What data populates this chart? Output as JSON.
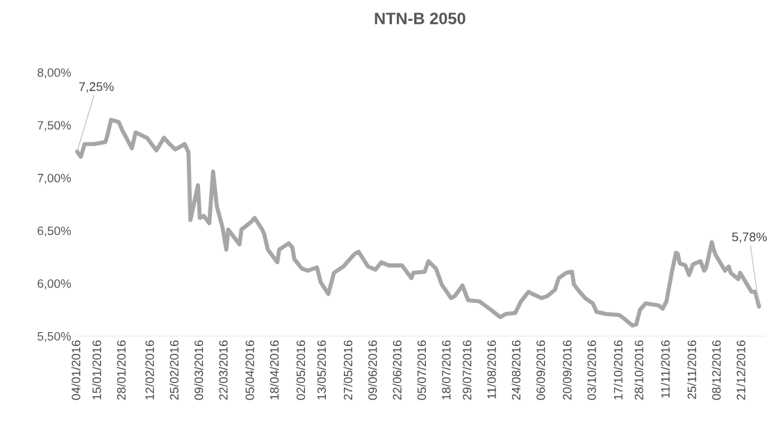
{
  "chart_data": {
    "type": "line",
    "title": "NTN-B 2050",
    "x": [
      "2016-01-04",
      "2016-01-06",
      "2016-01-08",
      "2016-01-13",
      "2016-01-19",
      "2016-01-20",
      "2016-01-22",
      "2016-01-26",
      "2016-01-28",
      "2016-02-02",
      "2016-02-04",
      "2016-02-10",
      "2016-02-15",
      "2016-02-17",
      "2016-02-19",
      "2016-02-22",
      "2016-02-25",
      "2016-03-01",
      "2016-03-03",
      "2016-03-04",
      "2016-03-08",
      "2016-03-09",
      "2016-03-11",
      "2016-03-14",
      "2016-03-16",
      "2016-03-18",
      "2016-03-21",
      "2016-03-23",
      "2016-03-24",
      "2016-03-30",
      "2016-03-31",
      "2016-04-05",
      "2016-04-07",
      "2016-04-11",
      "2016-04-12",
      "2016-04-14",
      "2016-04-19",
      "2016-04-20",
      "2016-04-25",
      "2016-04-27",
      "2016-04-28",
      "2016-05-02",
      "2016-05-05",
      "2016-05-10",
      "2016-05-12",
      "2016-05-16",
      "2016-05-19",
      "2016-05-24",
      "2016-05-30",
      "2016-06-01",
      "2016-06-06",
      "2016-06-10",
      "2016-06-13",
      "2016-06-17",
      "2016-06-24",
      "2016-06-29",
      "2016-06-30",
      "2016-07-06",
      "2016-07-08",
      "2016-07-12",
      "2016-07-15",
      "2016-07-20",
      "2016-07-22",
      "2016-07-26",
      "2016-07-29",
      "2016-08-04",
      "2016-08-10",
      "2016-08-15",
      "2016-08-18",
      "2016-08-23",
      "2016-08-26",
      "2016-08-30",
      "2016-09-01",
      "2016-09-06",
      "2016-09-09",
      "2016-09-13",
      "2016-09-15",
      "2016-09-19",
      "2016-09-22",
      "2016-09-23",
      "2016-09-26",
      "2016-09-29",
      "2016-10-03",
      "2016-10-05",
      "2016-10-10",
      "2016-10-17",
      "2016-10-20",
      "2016-10-24",
      "2016-10-26",
      "2016-10-28",
      "2016-10-31",
      "2016-11-07",
      "2016-11-09",
      "2016-11-11",
      "2016-11-14",
      "2016-11-16",
      "2016-11-17",
      "2016-11-18",
      "2016-11-21",
      "2016-11-23",
      "2016-11-25",
      "2016-11-29",
      "2016-12-01",
      "2016-12-02",
      "2016-12-05",
      "2016-12-06",
      "2016-12-07",
      "2016-12-12",
      "2016-12-14",
      "2016-12-15",
      "2016-12-19",
      "2016-12-20",
      "2016-12-23",
      "2016-12-26",
      "2016-12-28",
      "2016-12-30"
    ],
    "series": [
      {
        "color": "#a6a6a6",
        "values": [
          7.25,
          7.2,
          7.32,
          7.32,
          7.34,
          7.4,
          7.55,
          7.53,
          7.45,
          7.28,
          7.43,
          7.38,
          7.26,
          7.32,
          7.38,
          7.32,
          7.27,
          7.32,
          7.24,
          6.6,
          6.93,
          6.62,
          6.64,
          6.57,
          7.06,
          6.73,
          6.53,
          6.32,
          6.51,
          6.37,
          6.51,
          6.58,
          6.62,
          6.51,
          6.47,
          6.32,
          6.2,
          6.32,
          6.38,
          6.34,
          6.23,
          6.14,
          6.12,
          6.15,
          6.01,
          5.9,
          6.1,
          6.16,
          6.28,
          6.3,
          6.16,
          6.13,
          6.2,
          6.17,
          6.17,
          6.05,
          6.1,
          6.11,
          6.21,
          6.14,
          5.99,
          5.86,
          5.88,
          5.98,
          5.84,
          5.83,
          5.75,
          5.68,
          5.71,
          5.72,
          5.83,
          5.92,
          5.9,
          5.86,
          5.88,
          5.94,
          6.05,
          6.1,
          6.11,
          5.99,
          5.92,
          5.86,
          5.81,
          5.73,
          5.71,
          5.7,
          5.66,
          5.6,
          5.61,
          5.75,
          5.81,
          5.79,
          5.76,
          5.83,
          6.12,
          6.29,
          6.28,
          6.19,
          6.17,
          6.08,
          6.18,
          6.21,
          6.12,
          6.15,
          6.39,
          6.32,
          6.27,
          6.12,
          6.16,
          6.1,
          6.04,
          6.1,
          6.01,
          5.92,
          5.92,
          5.78
        ]
      }
    ],
    "xlim": [
      "2016-01-03",
      "2017-01-02"
    ],
    "xticks": [
      {
        "value": "2016-01-04",
        "label": "04/01/2016"
      },
      {
        "value": "2016-01-15",
        "label": "15/01/2016"
      },
      {
        "value": "2016-01-28",
        "label": "28/01/2016"
      },
      {
        "value": "2016-02-12",
        "label": "12/02/2016"
      },
      {
        "value": "2016-02-25",
        "label": "25/02/2016"
      },
      {
        "value": "2016-03-09",
        "label": "09/03/2016"
      },
      {
        "value": "2016-03-22",
        "label": "22/03/2016"
      },
      {
        "value": "2016-04-05",
        "label": "05/04/2016"
      },
      {
        "value": "2016-04-18",
        "label": "18/04/2016"
      },
      {
        "value": "2016-05-02",
        "label": "02/05/2016"
      },
      {
        "value": "2016-05-13",
        "label": "13/05/2016"
      },
      {
        "value": "2016-05-27",
        "label": "27/05/2016"
      },
      {
        "value": "2016-06-09",
        "label": "09/06/2016"
      },
      {
        "value": "2016-06-22",
        "label": "22/06/2016"
      },
      {
        "value": "2016-07-05",
        "label": "05/07/2016"
      },
      {
        "value": "2016-07-18",
        "label": "18/07/2016"
      },
      {
        "value": "2016-07-29",
        "label": "29/07/2016"
      },
      {
        "value": "2016-08-11",
        "label": "11/08/2016"
      },
      {
        "value": "2016-08-24",
        "label": "24/08/2016"
      },
      {
        "value": "2016-09-06",
        "label": "06/09/2016"
      },
      {
        "value": "2016-09-20",
        "label": "20/09/2016"
      },
      {
        "value": "2016-10-03",
        "label": "03/10/2016"
      },
      {
        "value": "2016-10-17",
        "label": "17/10/2016"
      },
      {
        "value": "2016-10-28",
        "label": "28/10/2016"
      },
      {
        "value": "2016-11-11",
        "label": "11/11/2016"
      },
      {
        "value": "2016-11-25",
        "label": "25/11/2016"
      },
      {
        "value": "2016-12-08",
        "label": "08/12/2016"
      },
      {
        "value": "2016-12-21",
        "label": "21/12/2016"
      }
    ],
    "ylim": [
      5.5,
      8.0
    ],
    "yticks": [
      {
        "value": 5.5,
        "label": "5,50%"
      },
      {
        "value": 6.0,
        "label": "6,00%"
      },
      {
        "value": 6.5,
        "label": "6,50%"
      },
      {
        "value": 7.0,
        "label": "7,00%"
      },
      {
        "value": 7.5,
        "label": "7,50%"
      },
      {
        "value": 8.0,
        "label": "8,00%"
      }
    ],
    "annotations": [
      {
        "text": "7,25%",
        "x": "2016-01-04",
        "y": 7.25
      },
      {
        "text": "5,78%",
        "x": "2016-12-30",
        "y": 5.78
      }
    ],
    "grid": false,
    "legend": false,
    "marker": "none",
    "line_style": "solid"
  }
}
